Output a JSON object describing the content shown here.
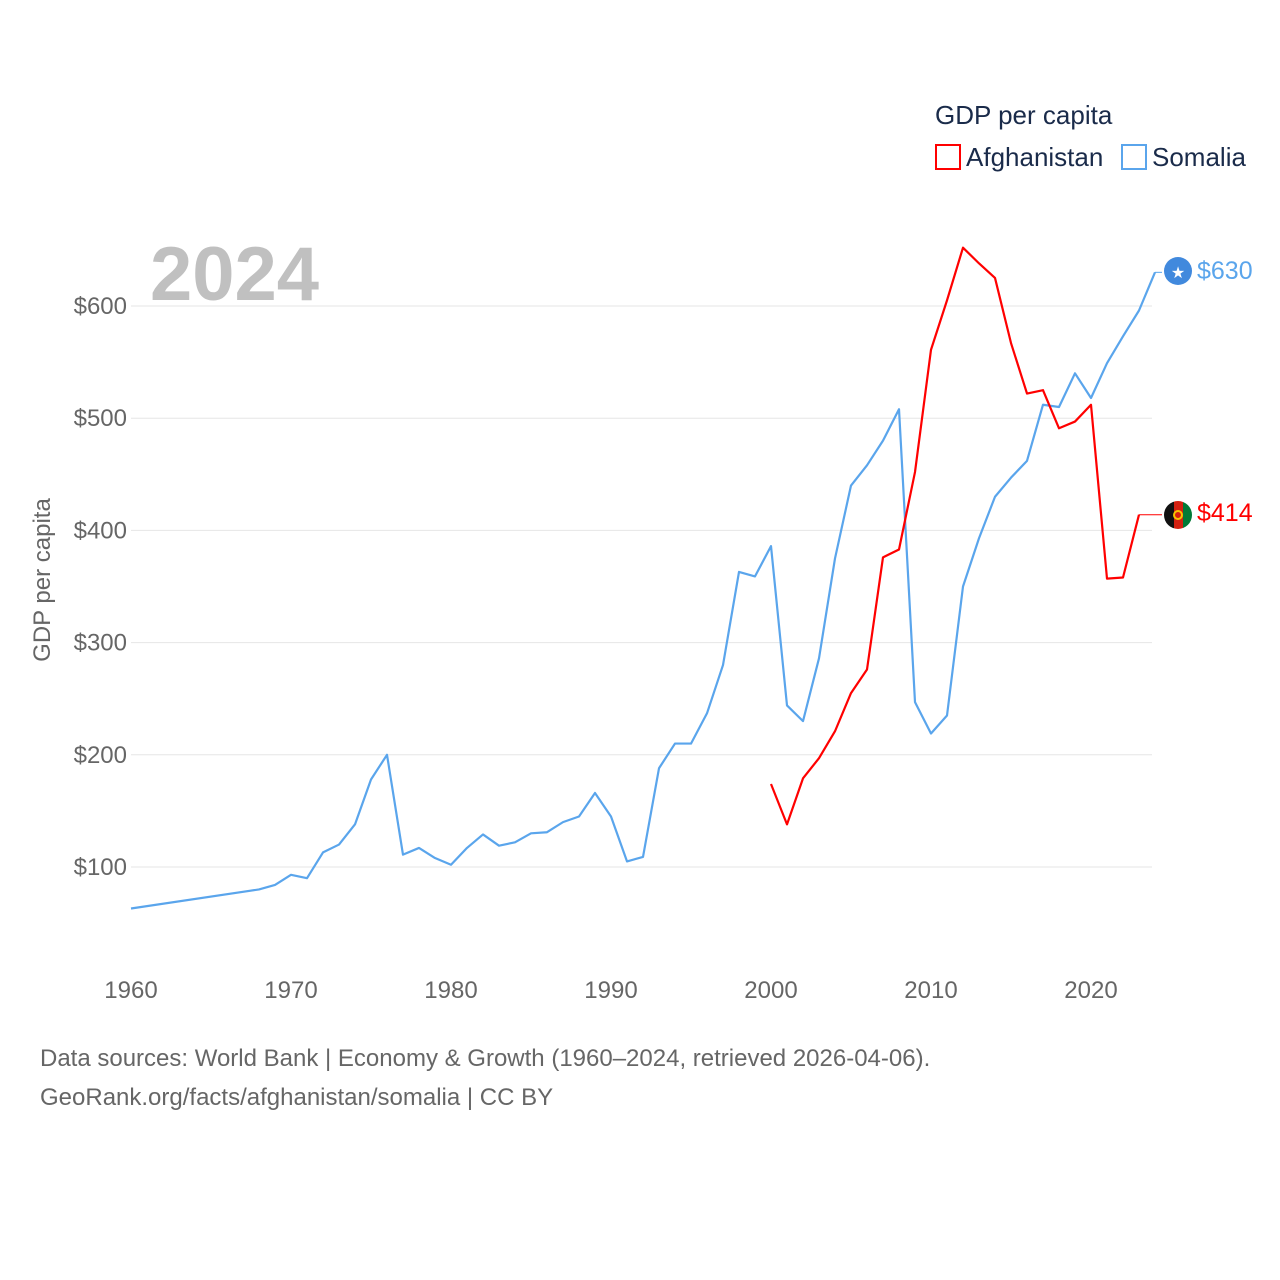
{
  "chart_data": {
    "type": "line",
    "title": "GDP per capita",
    "year_label": "2024",
    "ylabel": "GDP per capita",
    "xlabel": "",
    "xlim": [
      1960,
      2024
    ],
    "ylim": [
      0,
      680
    ],
    "x_ticks": [
      1960,
      1970,
      1980,
      1990,
      2000,
      2010,
      2020
    ],
    "y_ticks": [
      100,
      200,
      300,
      400,
      500,
      600
    ],
    "y_tick_labels": [
      "$100",
      "$200",
      "$300",
      "$400",
      "$500",
      "$600"
    ],
    "legend_position": "top-right",
    "series": [
      {
        "name": "Afghanistan",
        "color": "#ff0000",
        "end_label": "$414",
        "x": [
          2000,
          2001,
          2002,
          2003,
          2004,
          2005,
          2006,
          2007,
          2008,
          2009,
          2010,
          2011,
          2012,
          2013,
          2014,
          2015,
          2016,
          2017,
          2018,
          2019,
          2020,
          2021,
          2022,
          2023,
          2024
        ],
        "values": [
          174,
          138,
          179,
          197,
          221,
          255,
          276,
          376,
          383,
          452,
          561,
          605,
          652,
          638,
          625,
          567,
          522,
          525,
          491,
          497,
          512,
          357,
          358,
          414,
          414
        ]
      },
      {
        "name": "Somalia",
        "color": "#5aa5ec",
        "end_label": "$630",
        "x": [
          1960,
          1968,
          1969,
          1970,
          1971,
          1972,
          1973,
          1974,
          1975,
          1976,
          1977,
          1978,
          1979,
          1980,
          1981,
          1982,
          1983,
          1984,
          1985,
          1986,
          1987,
          1988,
          1989,
          1990,
          1991,
          1992,
          1993,
          1994,
          1995,
          1996,
          1997,
          1998,
          1999,
          2000,
          2001,
          2002,
          2003,
          2004,
          2005,
          2006,
          2007,
          2008,
          2009,
          2010,
          2011,
          2012,
          2013,
          2014,
          2015,
          2016,
          2017,
          2018,
          2019,
          2020,
          2021,
          2022,
          2023,
          2024
        ],
        "values": [
          63,
          80,
          84,
          93,
          90,
          113,
          120,
          138,
          178,
          200,
          111,
          117,
          108,
          102,
          117,
          129,
          119,
          122,
          130,
          131,
          140,
          145,
          166,
          145,
          105,
          109,
          188,
          210,
          210,
          237,
          280,
          363,
          359,
          386,
          244,
          230,
          286,
          375,
          440,
          458,
          480,
          508,
          247,
          219,
          235,
          350,
          393,
          430,
          447,
          462,
          512,
          510,
          540,
          518,
          549,
          573,
          596,
          630
        ]
      }
    ]
  },
  "footer": {
    "line1": "Data sources: World Bank | Economy & Growth (1960–2024, retrieved 2026-04-06).",
    "line2": "GeoRank.org/facts/afghanistan/somalia | CC BY"
  }
}
